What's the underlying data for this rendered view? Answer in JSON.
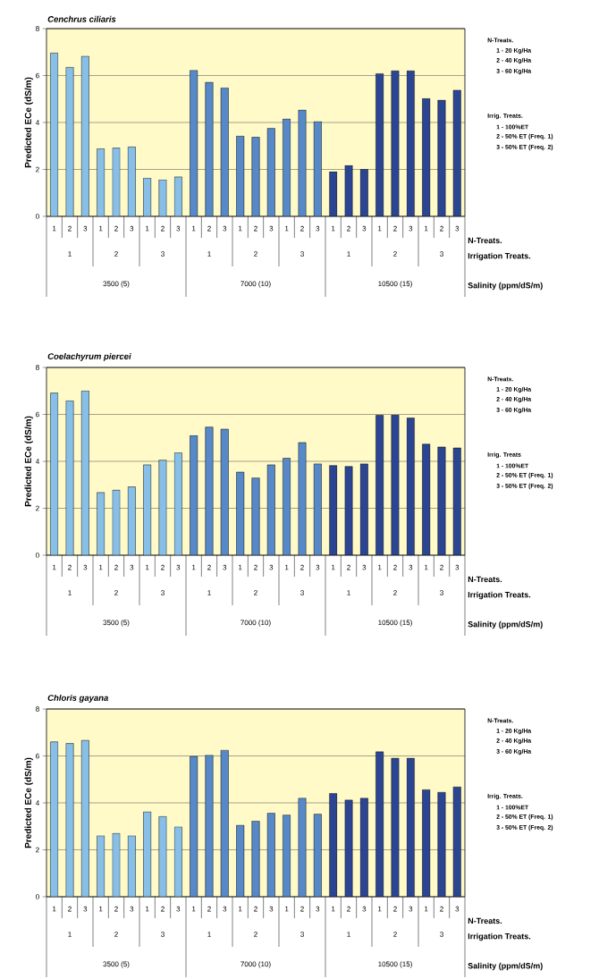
{
  "chart_data": [
    {
      "type": "bar",
      "title": "Cenchrus ciliaris",
      "ylabel": "Predicted ECe (dS/m)",
      "categories": [
        "1",
        "2",
        "3",
        "1",
        "2",
        "3",
        "1",
        "2",
        "3",
        "1",
        "2",
        "3",
        "1",
        "2",
        "3",
        "1",
        "2",
        "3",
        "1",
        "2",
        "3",
        "1",
        "2",
        "3",
        "1",
        "2",
        "3"
      ],
      "values": [
        6.96,
        6.35,
        6.82,
        2.88,
        2.91,
        2.96,
        1.63,
        1.56,
        1.68,
        6.22,
        5.71,
        5.47,
        3.42,
        3.37,
        3.75,
        4.15,
        4.53,
        4.04,
        1.9,
        2.17,
        2.0,
        6.08,
        6.2,
        6.2,
        5.02,
        4.95,
        5.38
      ],
      "colors": [
        "#87bfe8",
        "#87bfe8",
        "#87bfe8",
        "#87bfe8",
        "#87bfe8",
        "#87bfe8",
        "#87bfe8",
        "#87bfe8",
        "#87bfe8",
        "#5789c9",
        "#5789c9",
        "#5789c9",
        "#5789c9",
        "#5789c9",
        "#5789c9",
        "#5789c9",
        "#5789c9",
        "#5789c9",
        "#2b4593",
        "#2b4593",
        "#2b4593",
        "#2b4593",
        "#2b4593",
        "#2b4593",
        "#2b4593",
        "#2b4593",
        "#2b4593"
      ],
      "ylim": [
        0,
        8
      ],
      "yticks": [
        0,
        2,
        4,
        6,
        8
      ],
      "grid": "y",
      "annotations": [
        "1",
        "2",
        "3",
        "1",
        "2",
        "3",
        "1",
        "2",
        "3",
        "3500 (5)",
        "7000 (10)",
        "10500 (15)",
        "N-Treats.",
        "Irrigation Treats.",
        "Salinity (ppm/dS/m)",
        "N-Treats.",
        "1 - 20 Kg/Ha",
        "2 - 40 Kg/Ha",
        "3 - 60 Kg/Ha",
        "Irrig. Treats.",
        "1 - 100%ET",
        "2 - 50% ET (Freq. 1)",
        "3 - 50% ET (Freq. 2)"
      ]
    },
    {
      "type": "bar",
      "title": "Coelachyrum piercei",
      "ylabel": "Predicted ECe (dS/m)",
      "categories": [
        "1",
        "2",
        "3",
        "1",
        "2",
        "3",
        "1",
        "2",
        "3",
        "1",
        "2",
        "3",
        "1",
        "2",
        "3",
        "1",
        "2",
        "3",
        "1",
        "2",
        "3",
        "1",
        "2",
        "3",
        "1",
        "2",
        "3"
      ],
      "values": [
        6.91,
        6.58,
        7.0,
        2.67,
        2.77,
        2.91,
        3.85,
        4.05,
        4.37,
        5.1,
        5.46,
        5.37,
        3.54,
        3.29,
        3.85,
        4.13,
        4.8,
        3.89,
        3.82,
        3.78,
        3.89,
        5.96,
        5.97,
        5.85,
        4.73,
        4.61,
        4.57
      ],
      "colors": [
        "#87bfe8",
        "#87bfe8",
        "#87bfe8",
        "#87bfe8",
        "#87bfe8",
        "#87bfe8",
        "#87bfe8",
        "#87bfe8",
        "#87bfe8",
        "#5789c9",
        "#5789c9",
        "#5789c9",
        "#5789c9",
        "#5789c9",
        "#5789c9",
        "#5789c9",
        "#5789c9",
        "#5789c9",
        "#2b4593",
        "#2b4593",
        "#2b4593",
        "#2b4593",
        "#2b4593",
        "#2b4593",
        "#2b4593",
        "#2b4593",
        "#2b4593"
      ],
      "ylim": [
        0,
        8
      ],
      "yticks": [
        0,
        2,
        4,
        6,
        8
      ],
      "grid": "y",
      "annotations": [
        "1",
        "2",
        "3",
        "1",
        "2",
        "3",
        "1",
        "2",
        "3",
        "3500 (5)",
        "7000 (10)",
        "10500 (15)",
        "N-Treats.",
        "Irrigation Treats.",
        "Salinity (ppm/dS/m)",
        "N-Treats.",
        "1 - 20 Kg/Ha",
        "2 - 40 Kg/Ha",
        "3 - 60 Kg/Ha",
        "Irrig. Treats",
        "1 - 100%ET",
        "2 - 50% ET (Freq. 1)",
        "3 - 50% ET (Freq. 2)"
      ]
    },
    {
      "type": "bar",
      "title": "Chloris gayana",
      "ylabel": "Predicted ECe (dS/m)",
      "categories": [
        "1",
        "2",
        "3",
        "1",
        "2",
        "3",
        "1",
        "2",
        "3",
        "1",
        "2",
        "3",
        "1",
        "2",
        "3",
        "1",
        "2",
        "3",
        "1",
        "2",
        "3",
        "1",
        "2",
        "3",
        "1",
        "2",
        "3"
      ],
      "values": [
        6.6,
        6.53,
        6.66,
        2.6,
        2.7,
        2.6,
        3.62,
        3.42,
        2.98,
        5.98,
        6.03,
        6.24,
        3.05,
        3.22,
        3.56,
        3.48,
        4.2,
        3.52,
        4.4,
        4.12,
        4.2,
        6.18,
        5.9,
        5.9,
        4.56,
        4.45,
        4.68
      ],
      "colors": [
        "#87bfe8",
        "#87bfe8",
        "#87bfe8",
        "#87bfe8",
        "#87bfe8",
        "#87bfe8",
        "#87bfe8",
        "#87bfe8",
        "#87bfe8",
        "#5789c9",
        "#5789c9",
        "#5789c9",
        "#5789c9",
        "#5789c9",
        "#5789c9",
        "#5789c9",
        "#5789c9",
        "#5789c9",
        "#2b4593",
        "#2b4593",
        "#2b4593",
        "#2b4593",
        "#2b4593",
        "#2b4593",
        "#2b4593",
        "#2b4593",
        "#2b4593"
      ],
      "ylim": [
        0,
        8
      ],
      "yticks": [
        0,
        2,
        4,
        6,
        8
      ],
      "grid": "y",
      "annotations": [
        "1",
        "2",
        "3",
        "1",
        "2",
        "3",
        "1",
        "2",
        "3",
        "3500 (5)",
        "7000 (10)",
        "10500 (15)",
        "N-Treats.",
        "Irrigation Treats.",
        "Salinity (ppm/dS/m)",
        "N-Treats.",
        "1 - 20 Kg/Ha",
        "2 - 40 Kg/Ha",
        "3 - 60 Kg/Ha",
        "Irrig. Treats.",
        "1 - 100%ET",
        "2 - 50% ET (Freq. 1)",
        "3 - 50% ET (Freq. 2)"
      ]
    }
  ]
}
